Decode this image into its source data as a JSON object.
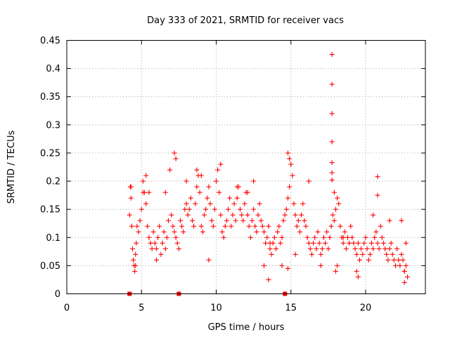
{
  "chart_data": {
    "type": "scatter",
    "title": "Day 333 of 2021, SRMTID for receiver vacs",
    "xlabel": "GPS time / hours",
    "ylabel": "SRMTID / TECUs",
    "xlim": [
      0,
      24
    ],
    "ylim": [
      0,
      0.45
    ],
    "xticks": [
      0,
      5,
      10,
      15,
      20
    ],
    "xtick_labels": [
      "0",
      "5",
      "10",
      "15",
      "20"
    ],
    "yticks": [
      0,
      0.05,
      0.1,
      0.15,
      0.2,
      0.25,
      0.3,
      0.35,
      0.4,
      0.45
    ],
    "ytick_labels": [
      "0",
      "0.05",
      "0.1",
      "0.15",
      "0.2",
      "0.25",
      "0.3",
      "0.35",
      "0.4",
      "0.45"
    ],
    "grid": true,
    "marker_color": "#ff0000",
    "marker": "+",
    "series": [
      {
        "name": "SRMTID",
        "x": [
          4.2,
          4.25,
          4.3,
          4.35,
          4.4,
          4.45,
          4.5,
          4.55,
          4.6,
          4.65,
          4.7,
          4.8,
          4.9,
          5.0,
          5.1,
          5.2,
          5.3,
          5.4,
          5.5,
          5.6,
          5.7,
          5.8,
          5.9,
          6.0,
          6.1,
          6.2,
          6.3,
          6.4,
          6.5,
          6.6,
          6.7,
          6.8,
          6.9,
          7.0,
          7.1,
          7.2,
          7.3,
          7.4,
          7.5,
          7.6,
          7.7,
          7.8,
          7.9,
          8.0,
          8.1,
          8.2,
          8.3,
          8.4,
          8.5,
          8.6,
          8.7,
          8.8,
          8.9,
          9.0,
          9.1,
          9.2,
          9.3,
          9.4,
          9.5,
          9.6,
          9.7,
          9.8,
          9.9,
          10.0,
          10.1,
          10.2,
          10.3,
          10.4,
          10.5,
          10.6,
          10.7,
          10.8,
          10.9,
          11.0,
          11.1,
          11.2,
          11.3,
          11.4,
          11.5,
          11.6,
          11.7,
          11.8,
          11.9,
          12.0,
          12.1,
          12.2,
          12.3,
          12.4,
          12.5,
          12.6,
          12.7,
          12.8,
          12.9,
          13.0,
          13.1,
          13.2,
          13.3,
          13.4,
          13.5,
          13.6,
          13.7,
          13.8,
          13.9,
          14.0,
          14.1,
          14.2,
          14.3,
          14.4,
          14.5,
          14.6,
          14.7,
          14.8,
          14.9,
          15.0,
          15.1,
          15.2,
          15.3,
          15.4,
          15.5,
          15.6,
          15.7,
          15.8,
          15.9,
          16.0,
          16.1,
          16.2,
          16.3,
          16.4,
          16.5,
          16.6,
          16.7,
          16.8,
          16.9,
          17.0,
          17.1,
          17.2,
          17.3,
          17.4,
          17.5,
          17.6,
          17.7,
          17.8,
          17.9,
          18.0,
          18.1,
          18.2,
          18.3,
          18.4,
          18.5,
          18.6,
          18.7,
          18.8,
          18.9,
          19.0,
          19.1,
          19.2,
          19.3,
          19.4,
          19.5,
          19.6,
          19.7,
          19.8,
          19.9,
          20.0,
          20.1,
          20.2,
          20.3,
          20.4,
          20.5,
          20.6,
          20.7,
          20.8,
          20.9,
          21.0,
          21.1,
          21.2,
          21.3,
          21.4,
          21.5,
          21.6,
          21.7,
          21.8,
          21.9,
          22.0,
          22.1,
          22.2,
          22.3,
          22.4,
          22.5,
          22.6,
          22.7,
          22.8,
          4.3,
          4.6,
          5.1,
          5.3,
          5.5,
          6.0,
          6.6,
          7.2,
          7.3,
          8.0,
          8.7,
          9.0,
          9.5,
          10.3,
          11.4,
          12.1,
          12.5,
          13.2,
          13.6,
          14.4,
          14.8,
          14.9,
          15.3,
          16.2,
          17.0,
          17.75,
          17.75,
          17.75,
          17.75,
          17.75,
          17.75,
          17.75,
          17.9,
          18.1,
          18.5,
          19.4,
          20.5,
          20.8,
          20.8,
          21.6,
          22.4,
          22.6,
          22.7,
          13.5,
          14.8,
          18.0,
          19.5,
          22.6
        ],
        "y": [
          0.14,
          0.19,
          0.17,
          0.12,
          0.08,
          0.06,
          0.05,
          0.04,
          0.07,
          0.09,
          0.12,
          0.11,
          0.13,
          0.15,
          0.2,
          0.18,
          0.16,
          0.12,
          0.1,
          0.09,
          0.08,
          0.11,
          0.09,
          0.08,
          0.1,
          0.12,
          0.07,
          0.09,
          0.11,
          0.08,
          0.1,
          0.13,
          0.22,
          0.14,
          0.12,
          0.11,
          0.1,
          0.09,
          0.08,
          0.13,
          0.12,
          0.11,
          0.15,
          0.16,
          0.14,
          0.15,
          0.17,
          0.13,
          0.12,
          0.16,
          0.19,
          0.21,
          0.18,
          0.12,
          0.11,
          0.14,
          0.15,
          0.17,
          0.19,
          0.16,
          0.13,
          0.12,
          0.15,
          0.2,
          0.22,
          0.18,
          0.14,
          0.11,
          0.1,
          0.12,
          0.13,
          0.15,
          0.17,
          0.12,
          0.14,
          0.16,
          0.13,
          0.17,
          0.19,
          0.15,
          0.14,
          0.13,
          0.16,
          0.18,
          0.14,
          0.12,
          0.1,
          0.13,
          0.15,
          0.12,
          0.11,
          0.14,
          0.16,
          0.13,
          0.12,
          0.11,
          0.09,
          0.1,
          0.12,
          0.08,
          0.07,
          0.09,
          0.1,
          0.08,
          0.11,
          0.12,
          0.09,
          0.1,
          0.13,
          0.14,
          0.15,
          0.17,
          0.19,
          0.23,
          0.21,
          0.16,
          0.14,
          0.12,
          0.13,
          0.11,
          0.14,
          0.16,
          0.13,
          0.12,
          0.1,
          0.09,
          0.08,
          0.07,
          0.09,
          0.1,
          0.08,
          0.11,
          0.09,
          0.07,
          0.08,
          0.1,
          0.09,
          0.11,
          0.08,
          0.1,
          0.12,
          0.14,
          0.13,
          0.15,
          0.17,
          0.16,
          0.12,
          0.1,
          0.09,
          0.11,
          0.08,
          0.1,
          0.09,
          0.12,
          0.1,
          0.09,
          0.08,
          0.07,
          0.09,
          0.06,
          0.08,
          0.07,
          0.09,
          0.1,
          0.08,
          0.06,
          0.07,
          0.09,
          0.08,
          0.1,
          0.11,
          0.09,
          0.08,
          0.12,
          0.1,
          0.09,
          0.08,
          0.07,
          0.06,
          0.08,
          0.09,
          0.07,
          0.06,
          0.05,
          0.08,
          0.06,
          0.05,
          0.07,
          0.06,
          0.04,
          0.05,
          0.03,
          0.19,
          0.05,
          0.18,
          0.21,
          0.18,
          0.06,
          0.18,
          0.25,
          0.24,
          0.2,
          0.22,
          0.21,
          0.06,
          0.23,
          0.19,
          0.18,
          0.2,
          0.05,
          0.09,
          0.05,
          0.25,
          0.24,
          0.07,
          0.2,
          0.05,
          0.425,
          0.372,
          0.32,
          0.27,
          0.233,
          0.215,
          0.202,
          0.18,
          0.05,
          0.1,
          0.04,
          0.14,
          0.208,
          0.175,
          0.13,
          0.13,
          0.04,
          0.09,
          0.025,
          0.045,
          0.04,
          0.03,
          0.02
        ],
        "markers_at_zero": [
          4.2,
          7.5,
          14.6
        ]
      }
    ]
  }
}
